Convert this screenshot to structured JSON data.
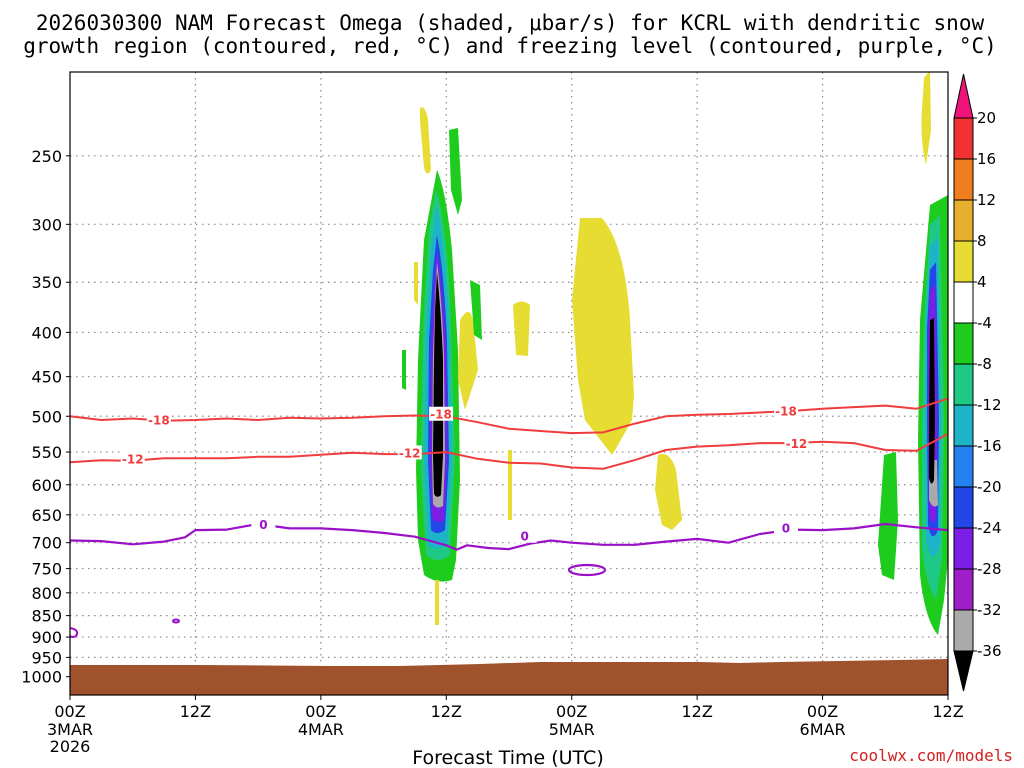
{
  "chart_data": {
    "type": "heatmap",
    "title_lines": [
      "2026030300 NAM Forecast Omega (shaded, μbar/s) for KCRL with dendritic snow",
      "growth region (contoured, red, °C) and freezing level (contoured, purple, °C)"
    ],
    "xlabel": "Forecast Time (UTC)",
    "ylabel": "",
    "x_range_hours": [
      0,
      84
    ],
    "x_ticks": [
      {
        "hour": 0,
        "label": "00Z",
        "sub": [
          "3MAR",
          "2026"
        ]
      },
      {
        "hour": 12,
        "label": "12Z",
        "sub": []
      },
      {
        "hour": 24,
        "label": "00Z",
        "sub": [
          "4MAR"
        ]
      },
      {
        "hour": 36,
        "label": "12Z",
        "sub": []
      },
      {
        "hour": 48,
        "label": "00Z",
        "sub": [
          "5MAR"
        ]
      },
      {
        "hour": 60,
        "label": "12Z",
        "sub": []
      },
      {
        "hour": 72,
        "label": "00Z",
        "sub": [
          "6MAR"
        ]
      },
      {
        "hour": 84,
        "label": "12Z",
        "sub": []
      }
    ],
    "y_levels_hPa": [
      250,
      300,
      350,
      400,
      450,
      500,
      550,
      600,
      650,
      700,
      750,
      800,
      850,
      900,
      950,
      1000
    ],
    "y_range_hPa": [
      200,
      1050
    ],
    "colorbar": {
      "levels": [
        20,
        16,
        12,
        8,
        4,
        -4,
        -8,
        -12,
        -16,
        -20,
        -24,
        -28,
        -32,
        -36
      ],
      "colors": [
        "#f0147a",
        "#f03232",
        "#f07d1e",
        "#e6af2d",
        "#e6dc32",
        "#ffffff",
        "#1ecc1e",
        "#1ec885",
        "#1eb4c8",
        "#2382f0",
        "#2346e6",
        "#7d1ee6",
        "#a01ec8",
        "#aaaaaa",
        "#000000"
      ]
    },
    "dgz_contours": [
      {
        "value": -18,
        "label": "-18",
        "points": [
          [
            0,
            500
          ],
          [
            3,
            505
          ],
          [
            6,
            503
          ],
          [
            9,
            506
          ],
          [
            12,
            505
          ],
          [
            15,
            503
          ],
          [
            18,
            505
          ],
          [
            21,
            502
          ],
          [
            24,
            503
          ],
          [
            27,
            502
          ],
          [
            30,
            500
          ],
          [
            33,
            499
          ],
          [
            35,
            500
          ],
          [
            36,
            500
          ],
          [
            39,
            508
          ],
          [
            42,
            517
          ],
          [
            45,
            520
          ],
          [
            48,
            523
          ],
          [
            51,
            522
          ],
          [
            54,
            510
          ],
          [
            57,
            500
          ],
          [
            60,
            498
          ],
          [
            63,
            497
          ],
          [
            66,
            495
          ],
          [
            69,
            493
          ],
          [
            72,
            490
          ],
          [
            75,
            488
          ],
          [
            78,
            486
          ],
          [
            81,
            490
          ],
          [
            84,
            477
          ]
        ],
        "label_positions": [
          [
            8.5,
            506
          ],
          [
            35.5,
            498
          ],
          [
            68.5,
            494
          ]
        ]
      },
      {
        "value": -12,
        "label": "-12",
        "points": [
          [
            0,
            565
          ],
          [
            3,
            562
          ],
          [
            6,
            563
          ],
          [
            9,
            559
          ],
          [
            12,
            559
          ],
          [
            15,
            559
          ],
          [
            18,
            557
          ],
          [
            21,
            557
          ],
          [
            24,
            554
          ],
          [
            27,
            551
          ],
          [
            30,
            553
          ],
          [
            33,
            553
          ],
          [
            36,
            550
          ],
          [
            39,
            560
          ],
          [
            42,
            566
          ],
          [
            45,
            567
          ],
          [
            48,
            573
          ],
          [
            51,
            575
          ],
          [
            54,
            562
          ],
          [
            57,
            547
          ],
          [
            60,
            542
          ],
          [
            63,
            540
          ],
          [
            66,
            537
          ],
          [
            69,
            537
          ],
          [
            72,
            535
          ],
          [
            75,
            537
          ],
          [
            78,
            547
          ],
          [
            81,
            548
          ],
          [
            84,
            524
          ]
        ],
        "label_positions": [
          [
            6,
            561
          ],
          [
            32.5,
            552
          ],
          [
            69.5,
            538
          ]
        ]
      }
    ],
    "freezing_level_contours": [
      {
        "value": 0,
        "label": "0",
        "points": [
          [
            0,
            696
          ],
          [
            3,
            697
          ],
          [
            6,
            703
          ],
          [
            9,
            698
          ],
          [
            11,
            690
          ],
          [
            12,
            677
          ],
          [
            15,
            676
          ],
          [
            18,
            666
          ],
          [
            21,
            674
          ],
          [
            24,
            674
          ],
          [
            27,
            677
          ],
          [
            30,
            682
          ],
          [
            33,
            689
          ],
          [
            36,
            705
          ],
          [
            37,
            713
          ],
          [
            38,
            705
          ],
          [
            40,
            710
          ],
          [
            42,
            712
          ],
          [
            44,
            702
          ],
          [
            46,
            696
          ],
          [
            48,
            700
          ],
          [
            51,
            704
          ],
          [
            54,
            704
          ],
          [
            57,
            698
          ],
          [
            60,
            693
          ],
          [
            63,
            700
          ],
          [
            66,
            684
          ],
          [
            69,
            676
          ],
          [
            72,
            677
          ],
          [
            75,
            674
          ],
          [
            78,
            666
          ],
          [
            81,
            672
          ],
          [
            84,
            677
          ]
        ],
        "label_positions": [
          [
            18.5,
            668
          ],
          [
            43.5,
            689
          ],
          [
            68.5,
            674
          ]
        ]
      }
    ],
    "annotations": [
      "-18",
      "-12",
      "0"
    ],
    "credit": "coolwx.com/models"
  }
}
